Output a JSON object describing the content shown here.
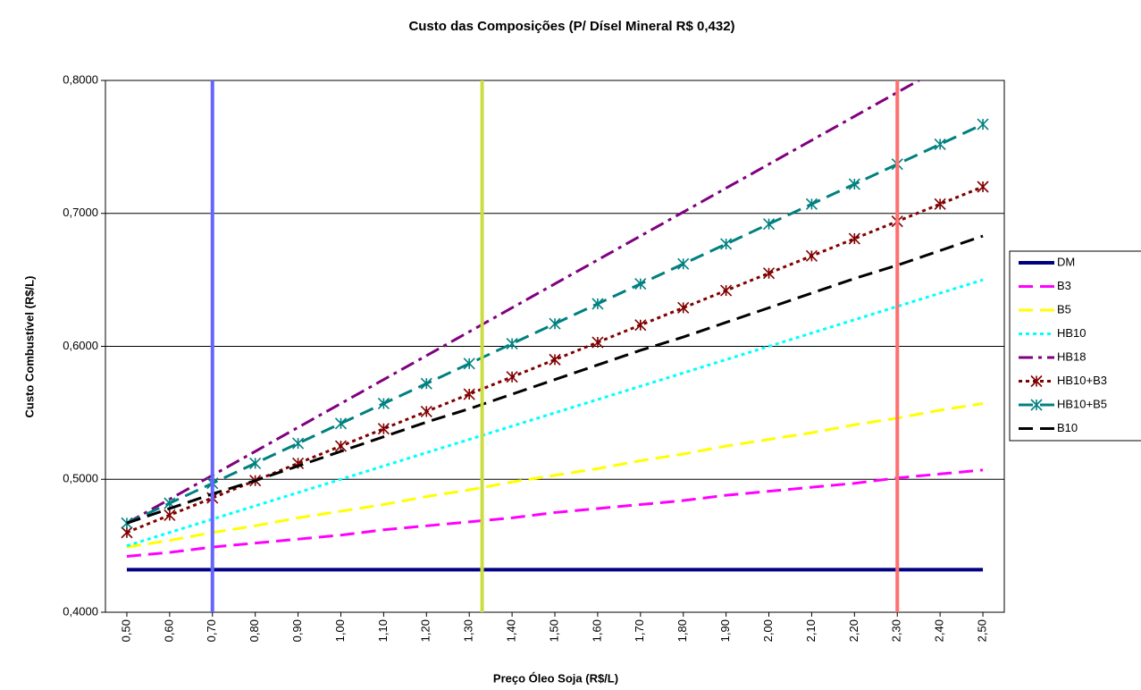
{
  "chart_data": {
    "type": "line",
    "title": "Custo das Composições (P/ Dísel Mineral R$ 0,432)",
    "x_label": "Preço Óleo Soja (R$/L)",
    "y_label": "Custo Combustível (R$/L)",
    "x": [
      0.5,
      0.6,
      0.7,
      0.8,
      0.9,
      1.0,
      1.1,
      1.2,
      1.3,
      1.4,
      1.5,
      1.6,
      1.7,
      1.8,
      1.9,
      2.0,
      2.1,
      2.2,
      2.3,
      2.4,
      2.5
    ],
    "xlim": [
      0.45,
      2.55
    ],
    "xticks": [
      {
        "value": 0.5,
        "label": "0,50"
      },
      {
        "value": 0.6,
        "label": "0,60"
      },
      {
        "value": 0.7,
        "label": "0,70"
      },
      {
        "value": 0.8,
        "label": "0,80"
      },
      {
        "value": 0.9,
        "label": "0,90"
      },
      {
        "value": 1.0,
        "label": "1,00"
      },
      {
        "value": 1.1,
        "label": "1,10"
      },
      {
        "value": 1.2,
        "label": "1,20"
      },
      {
        "value": 1.3,
        "label": "1,30"
      },
      {
        "value": 1.4,
        "label": "1,40"
      },
      {
        "value": 1.5,
        "label": "1,50"
      },
      {
        "value": 1.6,
        "label": "1,60"
      },
      {
        "value": 1.7,
        "label": "1,70"
      },
      {
        "value": 1.8,
        "label": "1,80"
      },
      {
        "value": 1.9,
        "label": "1,90"
      },
      {
        "value": 2.0,
        "label": "2,00"
      },
      {
        "value": 2.1,
        "label": "2,10"
      },
      {
        "value": 2.2,
        "label": "2,20"
      },
      {
        "value": 2.3,
        "label": "2,30"
      },
      {
        "value": 2.4,
        "label": "2,40"
      },
      {
        "value": 2.5,
        "label": "2,50"
      }
    ],
    "ylim": [
      0.4,
      0.8
    ],
    "yticks": [
      {
        "value": 0.4,
        "label": "0,4000"
      },
      {
        "value": 0.5,
        "label": "0,5000"
      },
      {
        "value": 0.6,
        "label": "0,6000"
      },
      {
        "value": 0.7,
        "label": "0,7000"
      },
      {
        "value": 0.8,
        "label": "0,8000"
      }
    ],
    "grid": true,
    "legend": "right",
    "vlines": [
      {
        "x": 0.7,
        "color": "#6666ff"
      },
      {
        "x": 1.33,
        "color": "#ccdd44"
      },
      {
        "x": 2.3,
        "color": "#ff7070"
      }
    ],
    "series": [
      {
        "name": "DM",
        "color": "#000080",
        "dash": "solid",
        "marker": "none",
        "values": [
          0.432,
          0.432,
          0.432,
          0.432,
          0.432,
          0.432,
          0.432,
          0.432,
          0.432,
          0.432,
          0.432,
          0.432,
          0.432,
          0.432,
          0.432,
          0.432,
          0.432,
          0.432,
          0.432,
          0.432,
          0.432
        ]
      },
      {
        "name": "B3",
        "color": "#ff00ff",
        "dash": "long",
        "marker": "none",
        "values": [
          0.442,
          0.445,
          0.449,
          0.452,
          0.455,
          0.458,
          0.462,
          0.465,
          0.468,
          0.471,
          0.475,
          0.478,
          0.481,
          0.484,
          0.488,
          0.491,
          0.494,
          0.497,
          0.501,
          0.504,
          0.507
        ]
      },
      {
        "name": "B5",
        "color": "#ffff00",
        "dash": "long",
        "marker": "none",
        "values": [
          0.449,
          0.454,
          0.46,
          0.465,
          0.471,
          0.476,
          0.481,
          0.487,
          0.492,
          0.498,
          0.503,
          0.508,
          0.514,
          0.519,
          0.525,
          0.53,
          0.535,
          0.541,
          0.546,
          0.552,
          0.557
        ]
      },
      {
        "name": "HB10",
        "color": "#00ffff",
        "dash": "dot",
        "marker": "none",
        "values": [
          0.45,
          0.46,
          0.47,
          0.48,
          0.49,
          0.5,
          0.51,
          0.52,
          0.53,
          0.54,
          0.55,
          0.56,
          0.57,
          0.58,
          0.59,
          0.6,
          0.61,
          0.62,
          0.63,
          0.64,
          0.65
        ]
      },
      {
        "name": "HB18",
        "color": "#800080",
        "dash": "dashdot",
        "marker": "none",
        "values": [
          0.467,
          0.485,
          0.503,
          0.521,
          0.539,
          0.557,
          0.575,
          0.593,
          0.611,
          0.629,
          0.647,
          0.665,
          0.683,
          0.701,
          0.719,
          0.737,
          0.755,
          0.773,
          0.791,
          0.809,
          0.827
        ]
      },
      {
        "name": "HB10+B3",
        "color": "#800000",
        "dash": "dot",
        "marker": "asterisk",
        "values": [
          0.46,
          0.473,
          0.486,
          0.499,
          0.512,
          0.525,
          0.538,
          0.551,
          0.564,
          0.577,
          0.59,
          0.603,
          0.616,
          0.629,
          0.642,
          0.655,
          0.668,
          0.681,
          0.694,
          0.707,
          0.72
        ]
      },
      {
        "name": "HB10+B5",
        "color": "#008080",
        "dash": "long",
        "marker": "asterisk",
        "values": [
          0.467,
          0.482,
          0.497,
          0.512,
          0.527,
          0.542,
          0.557,
          0.572,
          0.587,
          0.602,
          0.617,
          0.632,
          0.647,
          0.662,
          0.677,
          0.692,
          0.707,
          0.722,
          0.737,
          0.752,
          0.767
        ]
      },
      {
        "name": "B10",
        "color": "#000000",
        "dash": "long",
        "marker": "none",
        "values": [
          0.467,
          0.478,
          0.489,
          0.499,
          0.51,
          0.521,
          0.532,
          0.543,
          0.553,
          0.564,
          0.575,
          0.586,
          0.597,
          0.607,
          0.618,
          0.629,
          0.64,
          0.651,
          0.661,
          0.672,
          0.683
        ]
      }
    ]
  }
}
